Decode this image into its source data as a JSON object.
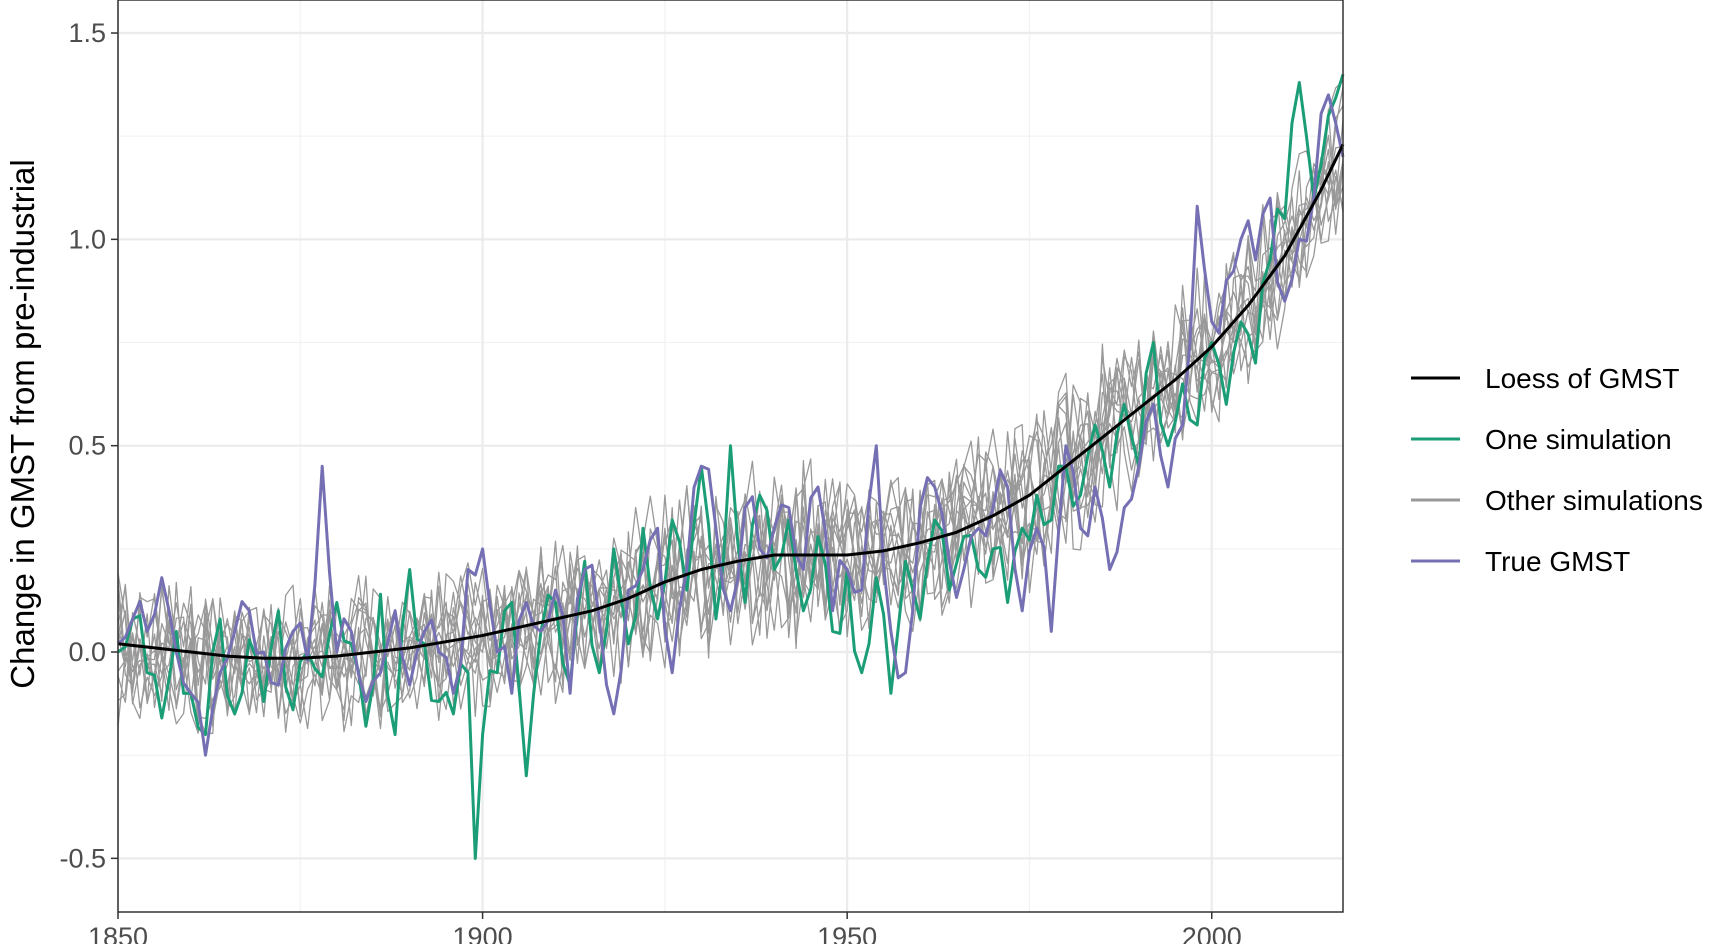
{
  "chart_data": {
    "type": "line",
    "title": "",
    "xlabel": "",
    "ylabel": "Change in GMST from pre-industrial",
    "xlim": [
      1850,
      2018
    ],
    "ylim": [
      -0.63,
      1.58
    ],
    "x_ticks": [
      1850,
      1900,
      1950,
      2000
    ],
    "x_tick_labels": [
      "1850",
      "1900",
      "1950",
      "2000"
    ],
    "y_ticks": [
      -0.5,
      0.0,
      0.5,
      1.0,
      1.5
    ],
    "y_tick_labels": [
      "-0.5",
      "0.0",
      "0.5",
      "1.0",
      "1.5"
    ],
    "grid": true,
    "legend_position": "right",
    "colors": {
      "loess": "#000000",
      "one_simulation": "#1b9e77",
      "other_simulations": "#999999",
      "true_gmst": "#7570b3"
    },
    "legend": [
      {
        "label": "Loess of GMST",
        "color": "#000000"
      },
      {
        "label": "One simulation",
        "color": "#1b9e77"
      },
      {
        "label": "Other simulations",
        "color": "#999999"
      },
      {
        "label": "True GMST",
        "color": "#7570b3"
      }
    ],
    "series": [
      {
        "name": "Loess of GMST",
        "x": [
          1850,
          1855,
          1860,
          1865,
          1870,
          1875,
          1880,
          1885,
          1890,
          1895,
          1900,
          1905,
          1910,
          1915,
          1920,
          1925,
          1930,
          1935,
          1940,
          1945,
          1950,
          1955,
          1960,
          1965,
          1970,
          1975,
          1980,
          1985,
          1990,
          1995,
          2000,
          2005,
          2010,
          2015,
          2018
        ],
        "values": [
          0.02,
          0.01,
          0.0,
          -0.01,
          -0.015,
          -0.015,
          -0.01,
          0.0,
          0.01,
          0.025,
          0.04,
          0.06,
          0.08,
          0.1,
          0.13,
          0.17,
          0.2,
          0.22,
          0.235,
          0.235,
          0.235,
          0.245,
          0.265,
          0.29,
          0.33,
          0.38,
          0.45,
          0.52,
          0.59,
          0.66,
          0.74,
          0.84,
          0.96,
          1.12,
          1.23
        ]
      },
      {
        "name": "One simulation",
        "x": [
          1850,
          1852,
          1854,
          1856,
          1858,
          1860,
          1862,
          1864,
          1866,
          1868,
          1870,
          1872,
          1874,
          1876,
          1878,
          1880,
          1882,
          1884,
          1886,
          1888,
          1890,
          1892,
          1894,
          1896,
          1898,
          1899,
          1900,
          1902,
          1904,
          1906,
          1908,
          1910,
          1912,
          1914,
          1916,
          1918,
          1920,
          1922,
          1924,
          1926,
          1928,
          1930,
          1932,
          1934,
          1936,
          1938,
          1940,
          1942,
          1944,
          1946,
          1948,
          1950,
          1952,
          1954,
          1956,
          1958,
          1960,
          1962,
          1964,
          1966,
          1968,
          1970,
          1972,
          1974,
          1976,
          1978,
          1980,
          1982,
          1984,
          1986,
          1988,
          1990,
          1992,
          1994,
          1996,
          1998,
          2000,
          2002,
          2004,
          2006,
          2008,
          2010,
          2012,
          2014,
          2016,
          2018
        ],
        "values": [
          0.0,
          0.08,
          -0.05,
          -0.16,
          0.05,
          -0.1,
          -0.2,
          0.08,
          -0.15,
          0.03,
          -0.12,
          0.1,
          -0.14,
          0.0,
          -0.06,
          0.12,
          0.02,
          -0.18,
          0.14,
          -0.2,
          0.2,
          0.02,
          -0.12,
          -0.15,
          -0.05,
          -0.5,
          -0.2,
          -0.05,
          0.12,
          -0.3,
          0.05,
          0.12,
          -0.08,
          0.22,
          -0.05,
          0.25,
          0.02,
          0.3,
          0.08,
          0.32,
          0.15,
          0.45,
          0.08,
          0.5,
          0.12,
          0.38,
          0.2,
          0.32,
          0.1,
          0.28,
          0.05,
          0.2,
          -0.05,
          0.18,
          -0.1,
          0.22,
          0.08,
          0.32,
          0.15,
          0.28,
          0.2,
          0.25,
          0.12,
          0.3,
          0.38,
          0.32,
          0.45,
          0.38,
          0.55,
          0.4,
          0.6,
          0.45,
          0.75,
          0.5,
          0.65,
          0.55,
          0.75,
          0.6,
          0.8,
          0.7,
          0.95,
          1.05,
          1.38,
          1.1,
          1.3,
          1.4
        ]
      },
      {
        "name": "True GMST",
        "x": [
          1850,
          1852,
          1854,
          1856,
          1858,
          1860,
          1862,
          1864,
          1866,
          1868,
          1870,
          1872,
          1874,
          1876,
          1878,
          1880,
          1882,
          1884,
          1886,
          1888,
          1890,
          1892,
          1894,
          1896,
          1898,
          1900,
          1902,
          1904,
          1906,
          1908,
          1910,
          1912,
          1914,
          1916,
          1918,
          1920,
          1922,
          1924,
          1926,
          1928,
          1930,
          1932,
          1934,
          1936,
          1938,
          1940,
          1942,
          1944,
          1946,
          1948,
          1950,
          1952,
          1954,
          1956,
          1958,
          1960,
          1962,
          1964,
          1966,
          1968,
          1970,
          1972,
          1974,
          1976,
          1978,
          1980,
          1982,
          1984,
          1986,
          1988,
          1990,
          1992,
          1994,
          1996,
          1998,
          2000,
          2002,
          2004,
          2006,
          2008,
          2010,
          2012,
          2014,
          2016,
          2018
        ],
        "values": [
          0.02,
          0.08,
          0.05,
          0.18,
          0.0,
          -0.1,
          -0.25,
          -0.05,
          0.05,
          0.1,
          0.0,
          -0.08,
          0.05,
          -0.02,
          0.45,
          0.0,
          0.05,
          -0.12,
          -0.05,
          0.1,
          -0.08,
          0.05,
          0.0,
          -0.1,
          0.2,
          0.25,
          0.0,
          -0.1,
          0.12,
          0.05,
          0.15,
          -0.1,
          0.2,
          0.08,
          -0.15,
          0.15,
          0.2,
          0.3,
          -0.05,
          0.2,
          0.45,
          0.3,
          0.1,
          0.35,
          0.25,
          0.3,
          0.35,
          0.2,
          0.4,
          0.1,
          0.2,
          0.15,
          0.5,
          0.05,
          -0.05,
          0.35,
          0.4,
          0.22,
          0.2,
          0.3,
          0.35,
          0.4,
          0.1,
          0.3,
          0.05,
          0.5,
          0.3,
          0.4,
          0.2,
          0.35,
          0.45,
          0.6,
          0.4,
          0.55,
          1.08,
          0.8,
          0.9,
          1.0,
          0.95,
          1.1,
          0.85,
          1.0,
          1.1,
          1.35,
          1.2
        ]
      },
      {
        "name": "Other simulations",
        "x": [
          1850,
          2018
        ],
        "values": [
          0.0,
          1.2
        ]
      }
    ]
  }
}
